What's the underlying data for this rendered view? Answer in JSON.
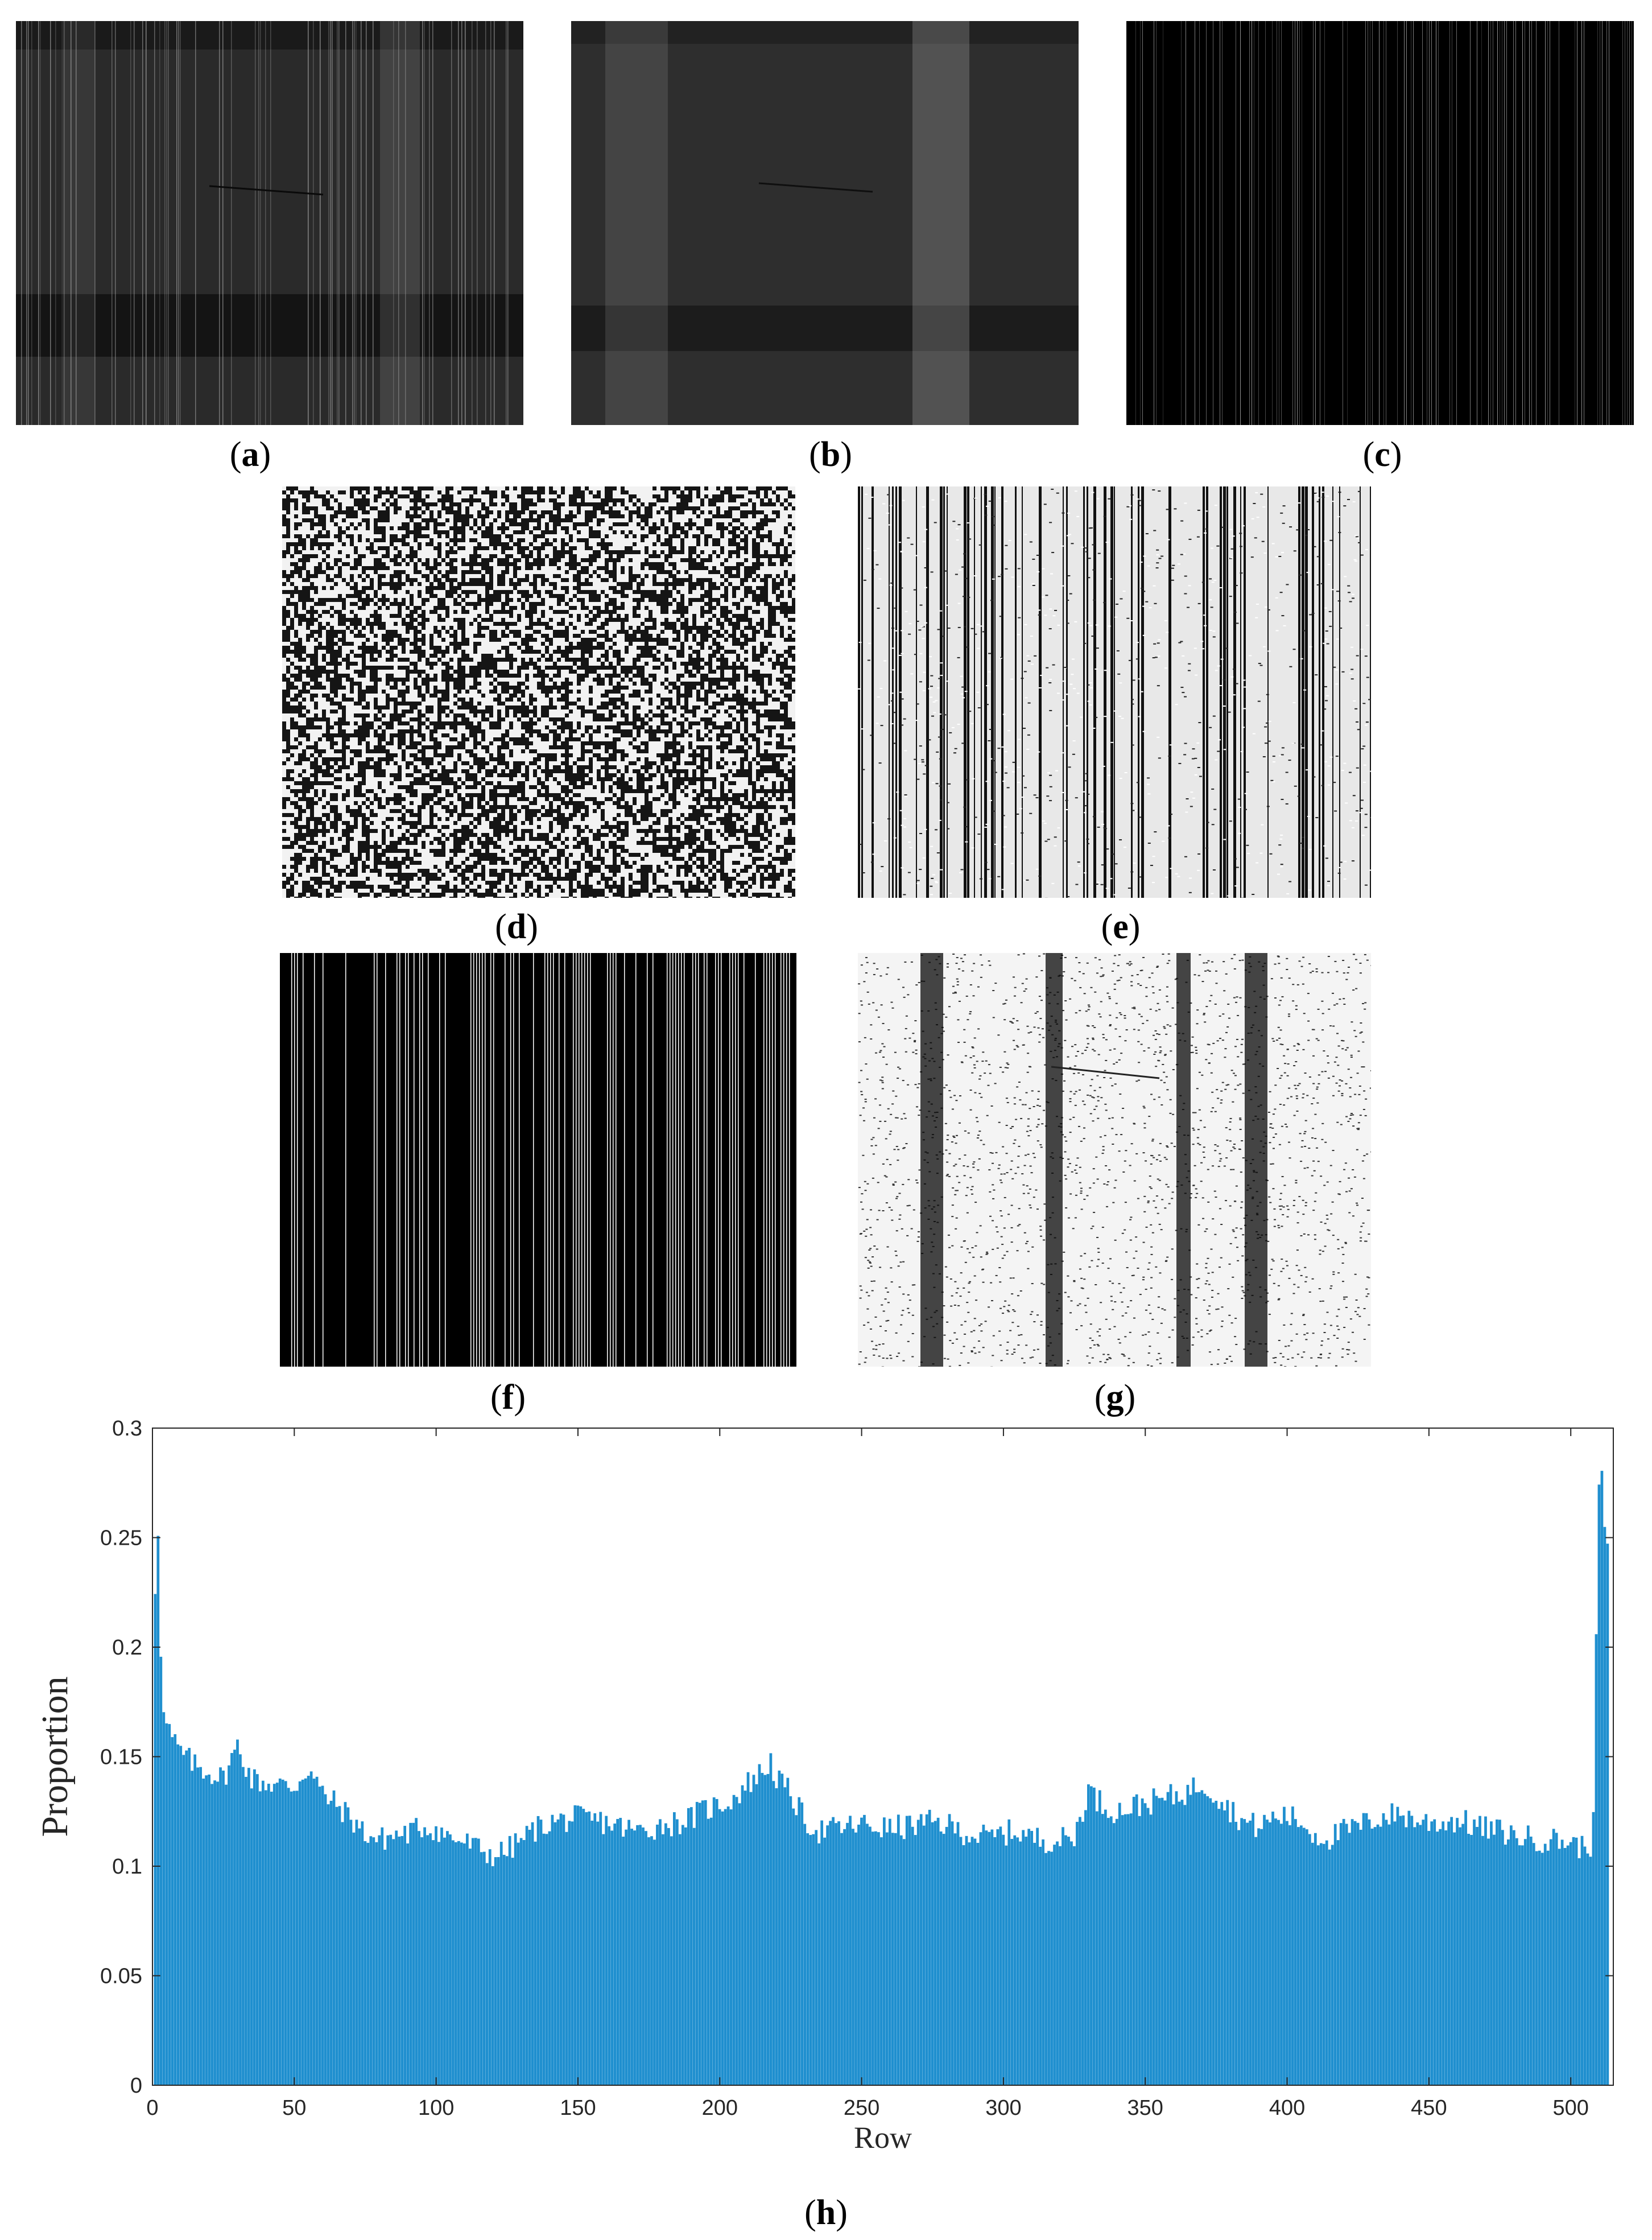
{
  "panels": [
    {
      "id": "a",
      "label": "a"
    },
    {
      "id": "b",
      "label": "b"
    },
    {
      "id": "c",
      "label": "c"
    },
    {
      "id": "d",
      "label": "d"
    },
    {
      "id": "e",
      "label": "e"
    },
    {
      "id": "f",
      "label": "f"
    },
    {
      "id": "g",
      "label": "g"
    },
    {
      "id": "h",
      "label": "h"
    }
  ],
  "chart_data": {
    "type": "bar",
    "xlabel": "Row",
    "ylabel": "Proportion",
    "xlim": [
      0,
      515
    ],
    "ylim": [
      0,
      0.3
    ],
    "xticks": [
      0,
      50,
      100,
      150,
      200,
      250,
      300,
      350,
      400,
      450,
      500
    ],
    "yticks": [
      0,
      0.05,
      0.1,
      0.15,
      0.2,
      0.25,
      0.3
    ],
    "xtick_labels": [
      "0",
      "50",
      "100",
      "150",
      "200",
      "250",
      "300",
      "350",
      "400",
      "450",
      "500"
    ],
    "ytick_labels": [
      "0",
      "0.05",
      "0.1",
      "0.15",
      "0.2",
      "0.25",
      "0.3"
    ],
    "grid": false,
    "bar_color": "#1f8fcf",
    "profile": [
      [
        1,
        0.227
      ],
      [
        2,
        0.255
      ],
      [
        3,
        0.2
      ],
      [
        4,
        0.168
      ],
      [
        5,
        0.165
      ],
      [
        7,
        0.158
      ],
      [
        10,
        0.152
      ],
      [
        15,
        0.146
      ],
      [
        20,
        0.143
      ],
      [
        25,
        0.14
      ],
      [
        30,
        0.155
      ],
      [
        35,
        0.14
      ],
      [
        40,
        0.138
      ],
      [
        45,
        0.137
      ],
      [
        50,
        0.136
      ],
      [
        55,
        0.145
      ],
      [
        60,
        0.133
      ],
      [
        65,
        0.128
      ],
      [
        70,
        0.122
      ],
      [
        75,
        0.115
      ],
      [
        80,
        0.112
      ],
      [
        85,
        0.114
      ],
      [
        90,
        0.115
      ],
      [
        95,
        0.118
      ],
      [
        100,
        0.117
      ],
      [
        105,
        0.113
      ],
      [
        110,
        0.111
      ],
      [
        115,
        0.108
      ],
      [
        120,
        0.105
      ],
      [
        125,
        0.107
      ],
      [
        130,
        0.112
      ],
      [
        135,
        0.117
      ],
      [
        140,
        0.12
      ],
      [
        145,
        0.121
      ],
      [
        150,
        0.122
      ],
      [
        155,
        0.121
      ],
      [
        160,
        0.12
      ],
      [
        165,
        0.118
      ],
      [
        170,
        0.116
      ],
      [
        175,
        0.117
      ],
      [
        180,
        0.119
      ],
      [
        185,
        0.12
      ],
      [
        190,
        0.122
      ],
      [
        195,
        0.126
      ],
      [
        200,
        0.128
      ],
      [
        205,
        0.131
      ],
      [
        210,
        0.138
      ],
      [
        215,
        0.143
      ],
      [
        218,
        0.148
      ],
      [
        220,
        0.14
      ],
      [
        225,
        0.133
      ],
      [
        230,
        0.121
      ],
      [
        235,
        0.116
      ],
      [
        240,
        0.117
      ],
      [
        245,
        0.118
      ],
      [
        250,
        0.119
      ],
      [
        255,
        0.118
      ],
      [
        260,
        0.117
      ],
      [
        265,
        0.118
      ],
      [
        270,
        0.119
      ],
      [
        275,
        0.12
      ],
      [
        280,
        0.119
      ],
      [
        285,
        0.116
      ],
      [
        290,
        0.114
      ],
      [
        295,
        0.113
      ],
      [
        300,
        0.115
      ],
      [
        305,
        0.116
      ],
      [
        310,
        0.113
      ],
      [
        315,
        0.112
      ],
      [
        320,
        0.112
      ],
      [
        325,
        0.113
      ],
      [
        330,
        0.135
      ],
      [
        335,
        0.128
      ],
      [
        340,
        0.125
      ],
      [
        345,
        0.127
      ],
      [
        350,
        0.129
      ],
      [
        355,
        0.13
      ],
      [
        360,
        0.132
      ],
      [
        365,
        0.134
      ],
      [
        370,
        0.138
      ],
      [
        375,
        0.133
      ],
      [
        380,
        0.126
      ],
      [
        385,
        0.12
      ],
      [
        390,
        0.118
      ],
      [
        395,
        0.122
      ],
      [
        400,
        0.123
      ],
      [
        405,
        0.12
      ],
      [
        410,
        0.114
      ],
      [
        415,
        0.113
      ],
      [
        420,
        0.116
      ],
      [
        425,
        0.118
      ],
      [
        430,
        0.121
      ],
      [
        435,
        0.123
      ],
      [
        440,
        0.124
      ],
      [
        445,
        0.121
      ],
      [
        450,
        0.12
      ],
      [
        455,
        0.12
      ],
      [
        460,
        0.121
      ],
      [
        465,
        0.119
      ],
      [
        470,
        0.117
      ],
      [
        475,
        0.116
      ],
      [
        480,
        0.114
      ],
      [
        485,
        0.113
      ],
      [
        490,
        0.112
      ],
      [
        495,
        0.112
      ],
      [
        500,
        0.111
      ],
      [
        505,
        0.108
      ],
      [
        507,
        0.11
      ],
      [
        508,
        0.13
      ],
      [
        509,
        0.2
      ],
      [
        510,
        0.27
      ],
      [
        511,
        0.285
      ],
      [
        512,
        0.25
      ],
      [
        513,
        0.245
      ]
    ]
  }
}
